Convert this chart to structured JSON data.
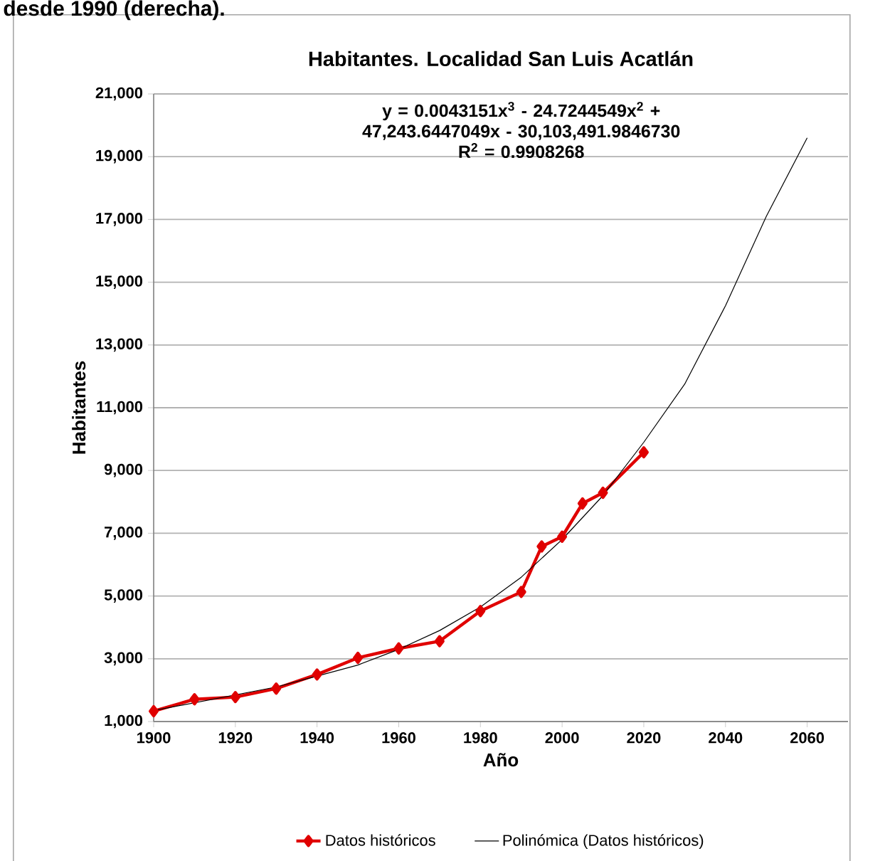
{
  "chart_data": {
    "type": "line",
    "title": "Habitantes. Localidad San Luis Acatlán",
    "xlabel": "Año",
    "ylabel": "Habitantes",
    "annotations": [
      "desde 1990 (derecha).",
      "y = 0.0043151x$^{3}$ - 24.7244549x$^{2}$ + 47,243.6447049x - 30,103,491.9846730",
      "R$^{2}$ = 0.9908268"
    ],
    "series": [
      {
        "name": "Datos históricos",
        "color": "#e00000",
        "marker": "diamond",
        "x": [
          1900,
          1910,
          1920,
          1930,
          1940,
          1950,
          1960,
          1970,
          1980,
          1990,
          1995,
          2000,
          2005,
          2010,
          2020
        ],
        "values": [
          1330,
          1710,
          1780,
          2050,
          2500,
          3030,
          3330,
          3560,
          4520,
          5130,
          6580,
          6890,
          7950,
          8290,
          9580
        ]
      },
      {
        "name": "Polinómica (Datos históricos)",
        "color": "#000000",
        "marker": "none",
        "x": [
          1900,
          1910,
          1920,
          1930,
          1940,
          1950,
          1960,
          1970,
          1980,
          1990,
          2000,
          2010,
          2020,
          2030,
          2040,
          2050,
          2060
        ],
        "values": [
          1350,
          1600,
          1850,
          2100,
          2450,
          2800,
          3300,
          3900,
          4650,
          5600,
          6800,
          8200,
          9900,
          11750,
          14250,
          17100,
          19600
        ]
      }
    ],
    "xlim": [
      1900,
      2070
    ],
    "ylim": [
      1000,
      21000
    ],
    "xticks": [
      1900,
      1920,
      1940,
      1960,
      1980,
      2000,
      2020,
      2040,
      2060
    ],
    "yticks": [
      {
        "value": 1000,
        "label": "1,000"
      },
      {
        "value": 3000,
        "label": "3,000"
      },
      {
        "value": 5000,
        "label": "5,000"
      },
      {
        "value": 7000,
        "label": "7,000"
      },
      {
        "value": 9000,
        "label": "9,000"
      },
      {
        "value": 11000,
        "label": "11,000"
      },
      {
        "value": 13000,
        "label": "13,000"
      },
      {
        "value": 15000,
        "label": "15,000"
      },
      {
        "value": 17000,
        "label": "17,000"
      },
      {
        "value": 19000,
        "label": "19,000"
      },
      {
        "value": 21000,
        "label": "21,000"
      }
    ],
    "grid": "y",
    "legend": "bottom",
    "line_style": "solid"
  }
}
